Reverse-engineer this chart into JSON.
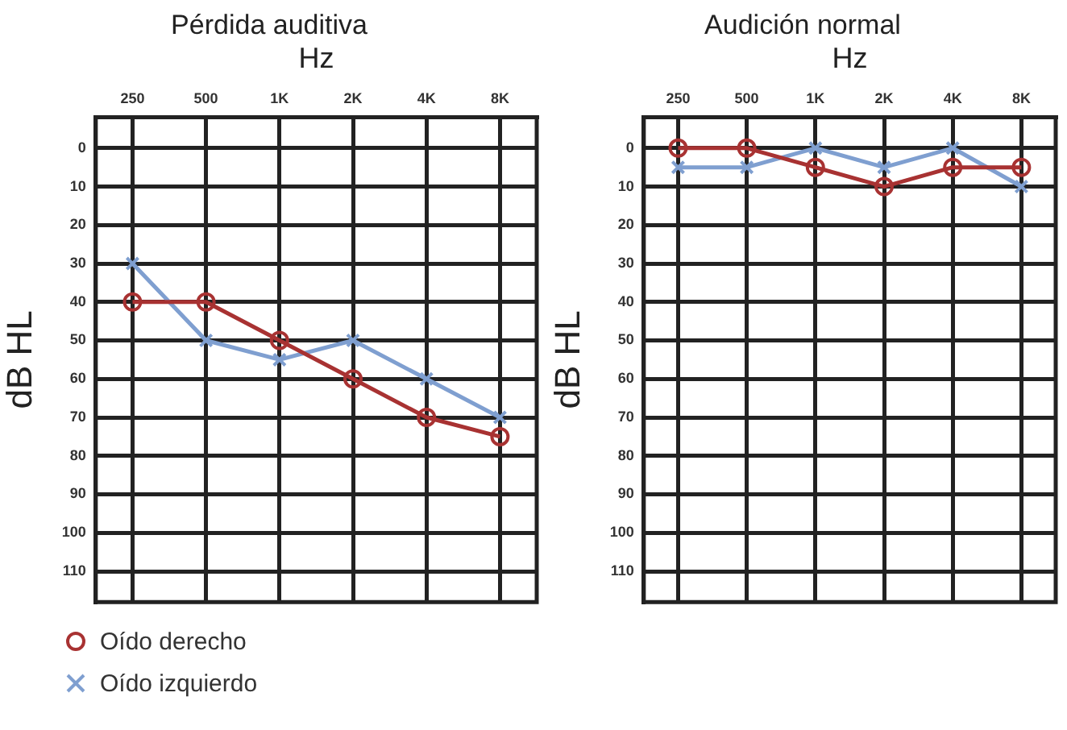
{
  "chart_data": [
    {
      "type": "line",
      "title": "Pérdida auditiva",
      "xlabel": "Hz",
      "ylabel": "dB HL",
      "categories": [
        "250",
        "500",
        "1K",
        "2K",
        "4K",
        "8K"
      ],
      "ylim": [
        118,
        -8
      ],
      "yticks": [
        0,
        10,
        20,
        30,
        40,
        50,
        60,
        70,
        80,
        90,
        100,
        110
      ],
      "grid": true,
      "legend": "bottom left",
      "line_style": "solid",
      "series": [
        {
          "name": "Oído derecho",
          "color": "#a83232",
          "marker": "circle",
          "values": [
            40,
            40,
            50,
            60,
            70,
            75
          ]
        },
        {
          "name": "Oído izquierdo",
          "color": "#7f9fd0",
          "marker": "cross",
          "values": [
            30,
            50,
            55,
            50,
            60,
            70
          ]
        }
      ]
    },
    {
      "type": "line",
      "title": "Audición normal",
      "xlabel": "Hz",
      "ylabel": "dB HL",
      "categories": [
        "250",
        "500",
        "1K",
        "2K",
        "4K",
        "8K"
      ],
      "ylim": [
        118,
        -8
      ],
      "yticks": [
        0,
        10,
        20,
        30,
        40,
        50,
        60,
        70,
        80,
        90,
        100,
        110
      ],
      "grid": true,
      "line_style": "solid",
      "series": [
        {
          "color": "#a83232",
          "marker": "circle",
          "values": [
            0,
            0,
            5,
            10,
            5,
            5
          ]
        },
        {
          "color": "#7f9fd0",
          "marker": "cross",
          "values": [
            5,
            5,
            0,
            5,
            0,
            10
          ]
        }
      ]
    }
  ]
}
